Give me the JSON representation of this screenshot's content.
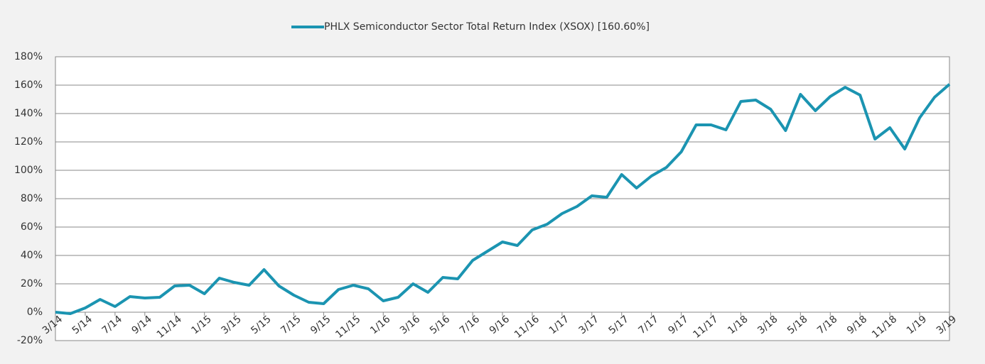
{
  "chart_data": {
    "type": "line",
    "categories": [
      "3/14",
      null,
      "5/14",
      null,
      "7/14",
      null,
      "9/14",
      null,
      "11/14",
      null,
      "1/15",
      null,
      "3/15",
      null,
      "5/15",
      null,
      "7/15",
      null,
      "9/15",
      null,
      "11/15",
      null,
      "1/16",
      null,
      "3/16",
      null,
      "5/16",
      null,
      "7/16",
      null,
      "9/16",
      null,
      "11/16",
      null,
      "1/17",
      null,
      "3/17",
      null,
      "5/17",
      null,
      "7/17",
      null,
      "9/17",
      null,
      "11/17",
      null,
      "1/18",
      null,
      "3/18",
      null,
      "5/18",
      null,
      "7/18",
      null,
      "9/18",
      null,
      "11/18",
      null,
      "1/19",
      null,
      "3/19"
    ],
    "series": [
      {
        "name": "PHLX Semiconductor Sector Total Return Index (XSOX) [160.60%]",
        "color": "#1b94b1",
        "values": [
          0,
          -1,
          3,
          9,
          4,
          11,
          10,
          10.5,
          18.5,
          19,
          13,
          24,
          21,
          19,
          30,
          18.5,
          12,
          7,
          6,
          16,
          19,
          16.5,
          8,
          10.5,
          20,
          14,
          24.5,
          23.5,
          36.5,
          43,
          49.5,
          47,
          58,
          62,
          69.5,
          74.5,
          82,
          81,
          97,
          87.5,
          96,
          102,
          113,
          132,
          132,
          128.5,
          148.5,
          149.5,
          143,
          128,
          153.5,
          142,
          152,
          158.5,
          153,
          122,
          130,
          115,
          137,
          151.5,
          160.6
        ]
      }
    ],
    "ylim": [
      -20,
      180
    ],
    "yticks": [
      {
        "value": -20,
        "label": "-20%"
      },
      {
        "value": 0,
        "label": "0%"
      },
      {
        "value": 20,
        "label": "20%"
      },
      {
        "value": 40,
        "label": "40%"
      },
      {
        "value": 60,
        "label": "60%"
      },
      {
        "value": 80,
        "label": "80%"
      },
      {
        "value": 100,
        "label": "100%"
      },
      {
        "value": 120,
        "label": "120%"
      },
      {
        "value": 140,
        "label": "140%"
      },
      {
        "value": 160,
        "label": "160%"
      },
      {
        "value": 180,
        "label": "180%"
      }
    ],
    "grid": true
  }
}
